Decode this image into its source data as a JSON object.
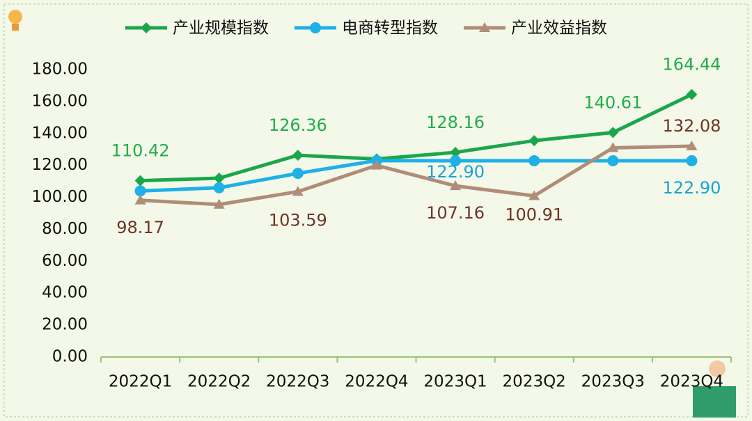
{
  "chart_data": {
    "type": "line",
    "categories": [
      "2022Q1",
      "2022Q2",
      "2022Q3",
      "2022Q4",
      "2023Q1",
      "2023Q2",
      "2023Q3",
      "2023Q4"
    ],
    "series": [
      {
        "name": "产业规模指数",
        "color": "#1ca64c",
        "marker": "diamond",
        "values": [
          110.42,
          112,
          126.36,
          124,
          128.16,
          135.5,
          140.61,
          164.44
        ],
        "value_labels": [
          "110.42",
          null,
          "126.36",
          null,
          "128.16",
          null,
          "140.61",
          "164.44"
        ]
      },
      {
        "name": "电商转型指数",
        "color": "#1fb0e6",
        "marker": "circle",
        "values": [
          104,
          106,
          115,
          123,
          122.9,
          122.9,
          122.9,
          122.9
        ],
        "value_labels": [
          null,
          null,
          null,
          null,
          "122.90",
          null,
          null,
          "122.90"
        ]
      },
      {
        "name": "产业效益指数",
        "color": "#b08d78",
        "marker": "triangle",
        "values": [
          98.17,
          95.5,
          103.59,
          120,
          107.16,
          100.91,
          131,
          132.08
        ],
        "value_labels": [
          "98.17",
          null,
          "103.59",
          null,
          "107.16",
          "100.91",
          null,
          "132.08"
        ]
      }
    ],
    "ylim": [
      0,
      180
    ],
    "yticks": [
      {
        "value": 0,
        "label": "0.00"
      },
      {
        "value": 20,
        "label": "20.00"
      },
      {
        "value": 40,
        "label": "40.00"
      },
      {
        "value": 60,
        "label": "60.00"
      },
      {
        "value": 80,
        "label": "80.00"
      },
      {
        "value": 100,
        "label": "100.00"
      },
      {
        "value": 120,
        "label": "120.00"
      },
      {
        "value": 140,
        "label": "140.00"
      },
      {
        "value": 160,
        "label": "160.00"
      },
      {
        "value": 180,
        "label": "180.00"
      }
    ],
    "legend": "top"
  }
}
